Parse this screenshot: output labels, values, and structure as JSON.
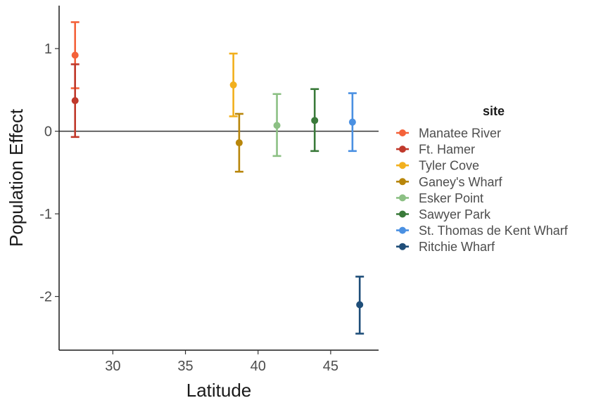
{
  "chart_data": {
    "type": "scatter",
    "title": "",
    "xlabel": "Latitude",
    "ylabel": "Population Effect",
    "xlim": [
      26.3,
      48.3
    ],
    "ylim": [
      -2.65,
      1.52
    ],
    "xticks": [
      30,
      35,
      40,
      45
    ],
    "yticks": [
      -2,
      -1,
      0,
      1
    ],
    "reference_line_y": 0,
    "grid": false,
    "legend": {
      "title": "site",
      "position": "right"
    },
    "series": [
      {
        "name": "Manatee River",
        "color": "#f4623a",
        "x": 27.4,
        "y": 0.92,
        "lower": 0.52,
        "upper": 1.32
      },
      {
        "name": "Ft. Hamer",
        "color": "#c0392b",
        "x": 27.4,
        "y": 0.37,
        "lower": -0.07,
        "upper": 0.81
      },
      {
        "name": "Tyler Cove",
        "color": "#f2b01e",
        "x": 38.3,
        "y": 0.56,
        "lower": 0.18,
        "upper": 0.94
      },
      {
        "name": "Ganey's Wharf",
        "color": "#b8860b",
        "x": 38.7,
        "y": -0.14,
        "lower": -0.49,
        "upper": 0.21
      },
      {
        "name": "Esker Point",
        "color": "#8cc084",
        "x": 41.3,
        "y": 0.07,
        "lower": -0.3,
        "upper": 0.45
      },
      {
        "name": "Sawyer Park",
        "color": "#3a7a3a",
        "x": 43.9,
        "y": 0.13,
        "lower": -0.24,
        "upper": 0.51
      },
      {
        "name": "St. Thomas de Kent Wharf",
        "color": "#4a90e2",
        "x": 46.5,
        "y": 0.11,
        "lower": -0.24,
        "upper": 0.46
      },
      {
        "name": "Ritchie Wharf",
        "color": "#1f4e79",
        "x": 47.0,
        "y": -2.1,
        "lower": -2.45,
        "upper": -1.76
      }
    ]
  }
}
